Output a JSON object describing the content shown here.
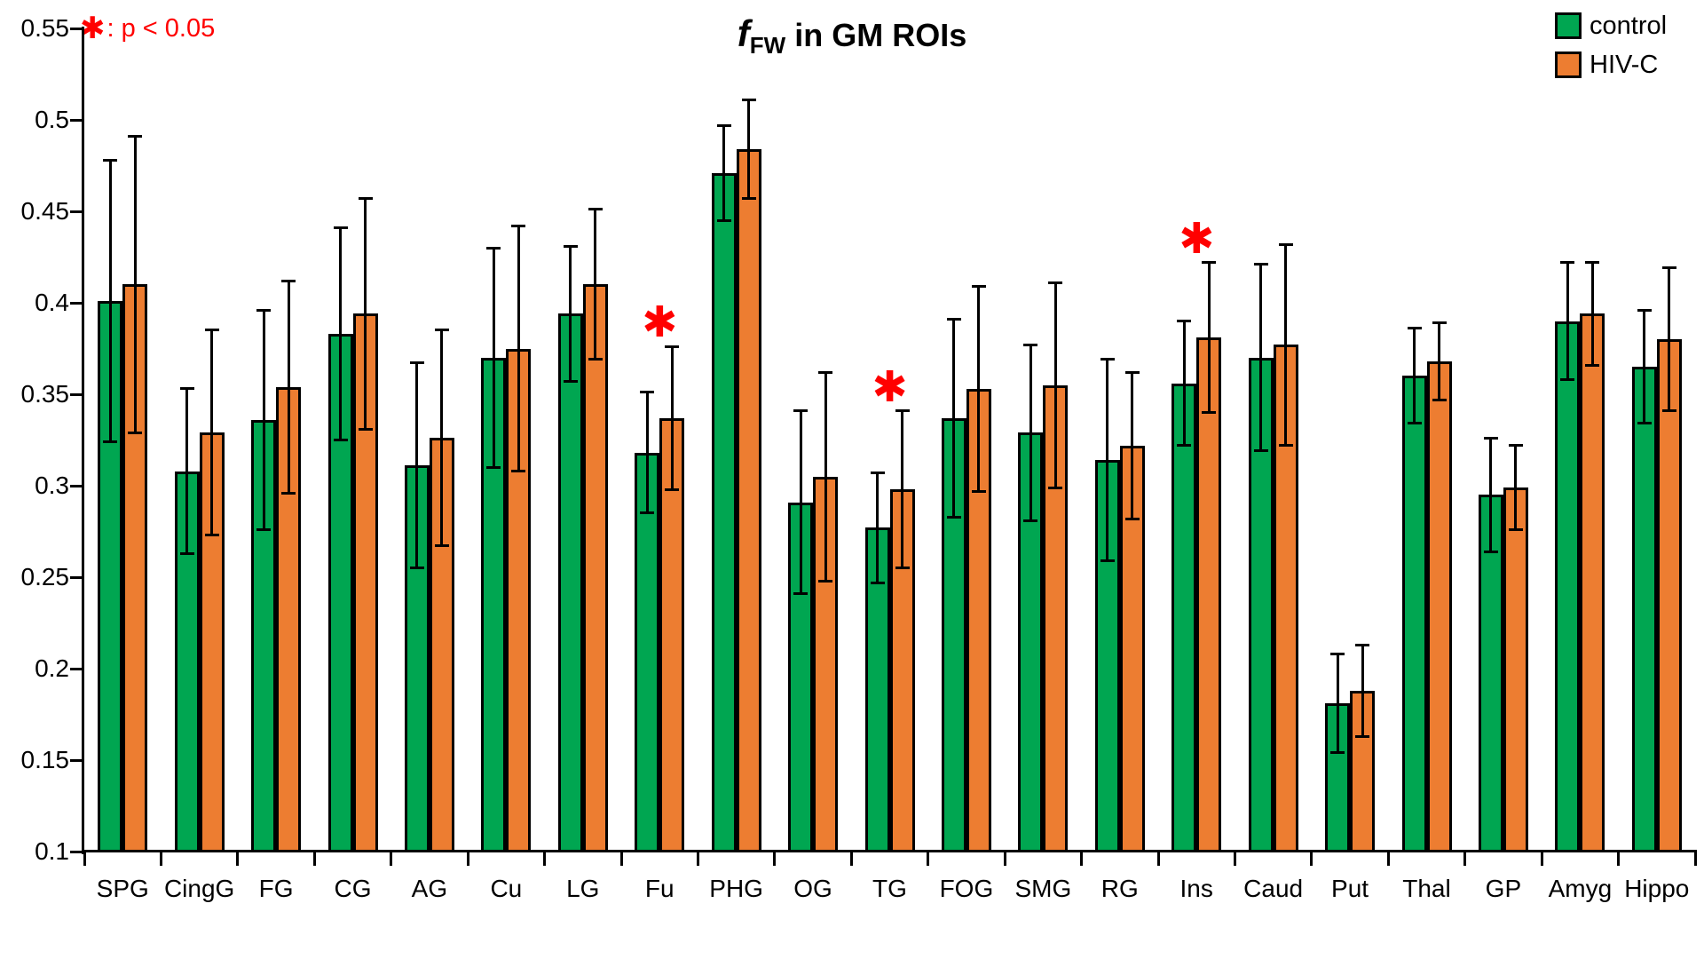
{
  "title": {
    "f": "f",
    "sub": "FW",
    "rest": " in GM ROIs"
  },
  "annotation": {
    "symbol": "✱",
    "text": ": p < 0.05",
    "color": "#ff0000"
  },
  "legend": {
    "position": "top-right",
    "items": [
      {
        "label": "control",
        "color": "#00A651"
      },
      {
        "label": "HIV-C",
        "color": "#ED7D31"
      }
    ]
  },
  "chart_data": {
    "type": "bar",
    "title": "fFW in GM ROIs",
    "categories": [
      "SPG",
      "CingG",
      "FG",
      "CG",
      "AG",
      "Cu",
      "LG",
      "Fu",
      "PHG",
      "OG",
      "TG",
      "FOG",
      "SMG",
      "RG",
      "Ins",
      "Caud",
      "Put",
      "Thal",
      "GP",
      "Amyg",
      "Hippo"
    ],
    "series": [
      {
        "name": "control",
        "color": "#00A651",
        "values": [
          0.401,
          0.308,
          0.336,
          0.383,
          0.311,
          0.37,
          0.394,
          0.318,
          0.471,
          0.291,
          0.277,
          0.337,
          0.329,
          0.314,
          0.356,
          0.37,
          0.181,
          0.36,
          0.295,
          0.39,
          0.365
        ],
        "sd": [
          0.077,
          0.045,
          0.06,
          0.058,
          0.056,
          0.06,
          0.037,
          0.033,
          0.026,
          0.05,
          0.03,
          0.054,
          0.048,
          0.055,
          0.034,
          0.051,
          0.027,
          0.026,
          0.031,
          0.032,
          0.031
        ]
      },
      {
        "name": "HIV-C",
        "color": "#ED7D31",
        "values": [
          0.41,
          0.329,
          0.354,
          0.394,
          0.326,
          0.375,
          0.41,
          0.337,
          0.484,
          0.305,
          0.298,
          0.353,
          0.355,
          0.322,
          0.381,
          0.377,
          0.188,
          0.368,
          0.299,
          0.394,
          0.38
        ],
        "sd": [
          0.081,
          0.056,
          0.058,
          0.063,
          0.059,
          0.067,
          0.041,
          0.039,
          0.027,
          0.057,
          0.043,
          0.056,
          0.056,
          0.04,
          0.041,
          0.055,
          0.025,
          0.021,
          0.023,
          0.028,
          0.039
        ]
      }
    ],
    "error_bars": "symmetric ±SD with end caps, drawn above and below bar tops",
    "significant_categories": [
      "Fu",
      "TG",
      "Ins"
    ],
    "significance_marker": "✱",
    "significance_note": "✱: p < 0.05",
    "ylim": [
      0.1,
      0.55
    ],
    "ytick_step": 0.05,
    "ytick_labels": [
      "0.1",
      "0.15",
      "0.2",
      "0.25",
      "0.3",
      "0.35",
      "0.4",
      "0.45",
      "0.5",
      "0.55"
    ],
    "grid": false,
    "legend_position": "top-right"
  }
}
